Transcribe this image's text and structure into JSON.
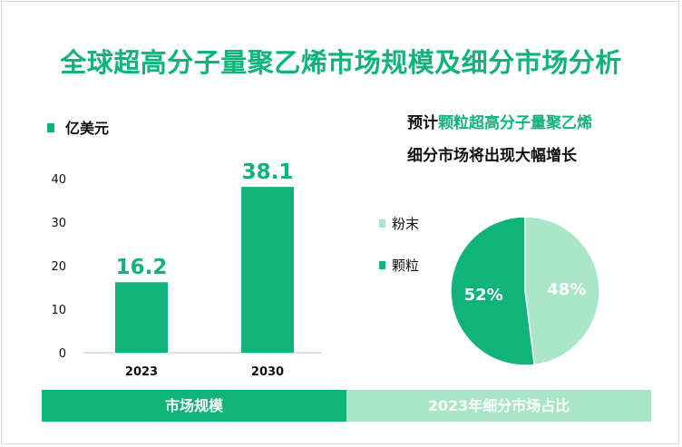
{
  "title": "全球超高分子量聚乙烯市场规模及细分市场分析",
  "colors": {
    "accent": "#10b37a",
    "light": "#a9e6c7",
    "text": "#111111"
  },
  "bar_legend": "亿美元",
  "pie_title": {
    "line1_prefix": "预计",
    "line1_highlight": "颗粒超高分子量聚乙烯",
    "line2": "细分市场将出现大幅增长"
  },
  "pie_legend": [
    {
      "label": "粉末",
      "color": "#a9e6c7"
    },
    {
      "label": "颗粒",
      "color": "#10b37a"
    }
  ],
  "footer": {
    "left": "市场规模",
    "right": "2023年细分市场占比"
  },
  "chart_data": [
    {
      "type": "bar",
      "categories": [
        "2023",
        "2030"
      ],
      "values": [
        16.2,
        38.1
      ],
      "ylabel": "亿美元",
      "ylim": [
        0,
        40
      ],
      "yticks": [
        0,
        10,
        20,
        30,
        40
      ],
      "grid": false,
      "legend": "top-left"
    },
    {
      "type": "pie",
      "labels": [
        "粉末",
        "颗粒"
      ],
      "values": [
        48,
        52
      ],
      "value_labels": [
        "48%",
        "52%"
      ],
      "colors": [
        "#a9e6c7",
        "#10b37a"
      ],
      "legend": "left"
    }
  ]
}
